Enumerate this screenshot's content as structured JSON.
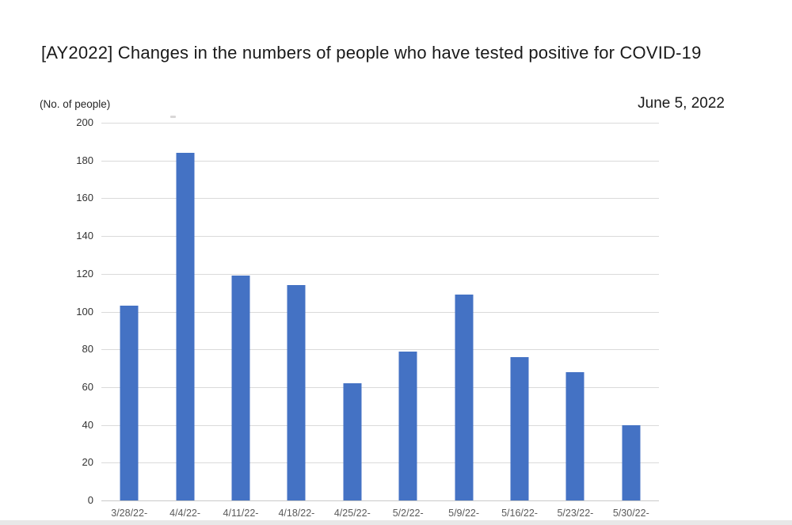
{
  "header": {
    "title": "[AY2022] Changes in the numbers of people who have tested positive for COVID-19",
    "date": "June 5, 2022"
  },
  "chart_data": {
    "type": "bar",
    "title": "[AY2022] Changes in the numbers of people who have tested positive for COVID-19",
    "annotation_date": "June 5, 2022",
    "ylabel": "(No. of people)",
    "xlabel": "",
    "categories": [
      "3/28/22-",
      "4/4/22-",
      "4/11/22-",
      "4/18/22-",
      "4/25/22-",
      "5/2/22-",
      "5/9/22-",
      "5/16/22-",
      "5/23/22-",
      "5/30/22-"
    ],
    "values": [
      103,
      184,
      119,
      114,
      62,
      79,
      109,
      76,
      68,
      40
    ],
    "ylim": [
      0,
      200
    ],
    "ytick_step": 20,
    "grid": true,
    "legend": "none",
    "bar_color": "#4472C4",
    "gridline_color": "#dadada",
    "axis_line_color": "#c9c9c9",
    "xtick_color": "#595959",
    "ytick_color": "#333333"
  }
}
